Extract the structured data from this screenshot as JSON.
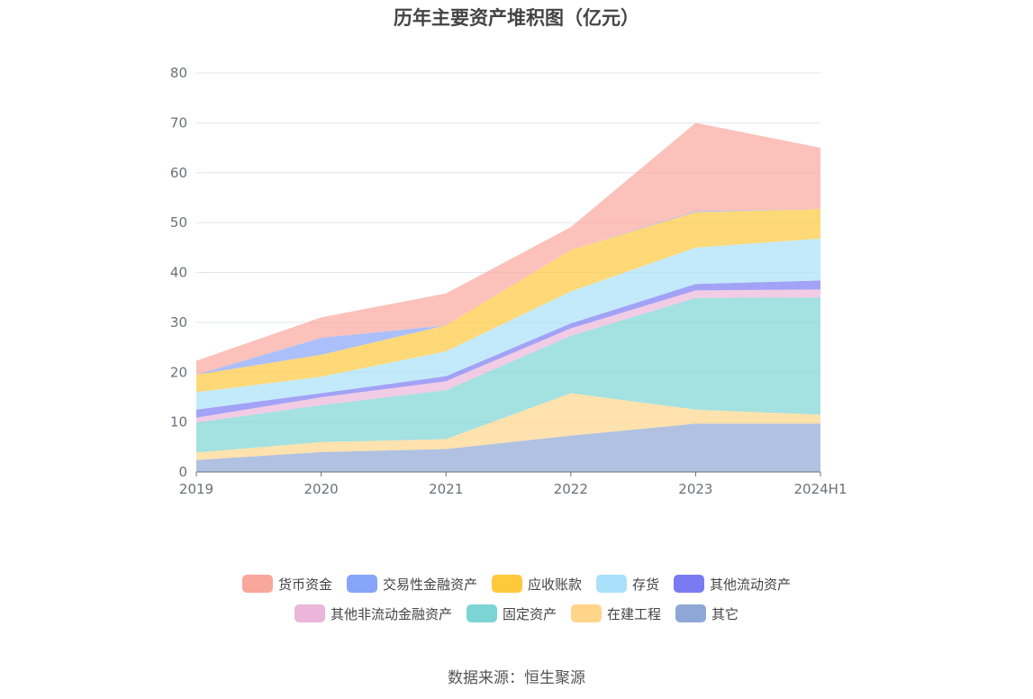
{
  "chart_data": {
    "type": "area",
    "stacked": true,
    "title": "历年主要资产堆积图（亿元）",
    "xlabel": "",
    "ylabel": "",
    "categories": [
      "2019",
      "2020",
      "2021",
      "2022",
      "2023",
      "2024H1"
    ],
    "ylim": [
      0,
      80
    ],
    "yticks": [
      0,
      10,
      20,
      30,
      40,
      50,
      60,
      70,
      80
    ],
    "grid": true,
    "legend_position": "bottom",
    "series": [
      {
        "name": "其它",
        "color": "#8fa7d6",
        "values": [
          2.4,
          4.0,
          4.6,
          7.3,
          9.7,
          9.7
        ]
      },
      {
        "name": "在建工程",
        "color": "#ffd58a",
        "values": [
          1.5,
          2.0,
          2.0,
          8.5,
          2.8,
          1.8
        ]
      },
      {
        "name": "固定资产",
        "color": "#7dd4d4",
        "values": [
          6.0,
          7.4,
          9.8,
          11.5,
          22.4,
          23.5
        ]
      },
      {
        "name": "其他非流动金融资产",
        "color": "#ebb6d9",
        "values": [
          1.0,
          1.6,
          1.8,
          1.5,
          1.5,
          1.6
        ]
      },
      {
        "name": "其他流动资产",
        "color": "#7a7bf2",
        "values": [
          1.6,
          0.8,
          1.0,
          1.0,
          1.3,
          1.8
        ]
      },
      {
        "name": "存货",
        "color": "#a9e1fa",
        "values": [
          3.5,
          3.3,
          5.0,
          6.4,
          7.3,
          8.4
        ]
      },
      {
        "name": "应收账款",
        "color": "#ffc93d",
        "values": [
          3.5,
          4.4,
          5.2,
          8.3,
          7.1,
          5.9
        ]
      },
      {
        "name": "交易性金融资产",
        "color": "#87a5f8",
        "values": [
          0.0,
          3.4,
          0.0,
          0.0,
          0.2,
          0.0
        ]
      },
      {
        "name": "货币资金",
        "color": "#f9a79c",
        "values": [
          2.8,
          4.1,
          6.4,
          4.6,
          17.7,
          12.3
        ]
      }
    ]
  },
  "legend_rows": [
    [
      {
        "label": "货币资金",
        "color": "#f9a79c"
      },
      {
        "label": "交易性金融资产",
        "color": "#87a5f8"
      },
      {
        "label": "应收账款",
        "color": "#ffc93d"
      },
      {
        "label": "存货",
        "color": "#a9e1fa"
      },
      {
        "label": "其他流动资产",
        "color": "#7a7bf2"
      }
    ],
    [
      {
        "label": "其他非流动金融资产",
        "color": "#ebb6d9"
      },
      {
        "label": "固定资产",
        "color": "#7dd4d4"
      },
      {
        "label": "在建工程",
        "color": "#ffd58a"
      },
      {
        "label": "其它",
        "color": "#8fa7d6"
      }
    ]
  ],
  "source": "数据来源：恒生聚源"
}
